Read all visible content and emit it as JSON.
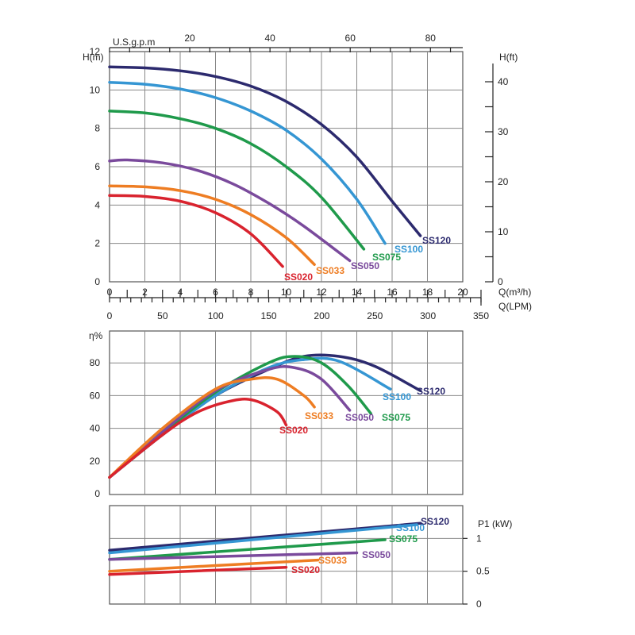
{
  "colors": {
    "SS120": "#2c2a6e",
    "SS100": "#3596d3",
    "SS075": "#1f9a4b",
    "SS050": "#7a4a9c",
    "SS033": "#ee7d23",
    "SS020": "#d9232e"
  },
  "chart_data": [
    {
      "type": "line",
      "name": "head-curve",
      "ylabel_left": "H(m)",
      "ylabel_right": "H(ft)",
      "xlabel_q": "Q(m³/h)",
      "xlabel_lpm": "Q(LPM)",
      "xlabel_usgpm": "U.S.g.p.m",
      "xlim": [
        0,
        20
      ],
      "ylim": [
        0,
        12
      ],
      "y_ticks": [
        "0",
        "2",
        "4",
        "6",
        "8",
        "10",
        "12"
      ],
      "ft_ticks": [
        "0",
        "10",
        "20",
        "30",
        "40"
      ],
      "q_ticks": [
        "0",
        "2",
        "4",
        "6",
        "8",
        "10",
        "12",
        "14",
        "16",
        "18",
        "20"
      ],
      "lpm_ticks": [
        "0",
        "50",
        "100",
        "150",
        "200",
        "250",
        "300",
        "350"
      ],
      "usgpm_ticks": [
        "20",
        "40",
        "60",
        "80"
      ],
      "grid": true,
      "series": [
        {
          "name": "SS120",
          "x": [
            0,
            2,
            4,
            6,
            8,
            10,
            12,
            14,
            16,
            17.6
          ],
          "y": [
            11.2,
            11.15,
            11.0,
            10.7,
            10.2,
            9.4,
            8.2,
            6.5,
            4.2,
            2.4
          ]
        },
        {
          "name": "SS100",
          "x": [
            0,
            2,
            4,
            6,
            8,
            10,
            12,
            14,
            15.6
          ],
          "y": [
            10.4,
            10.3,
            10.05,
            9.6,
            8.9,
            7.9,
            6.4,
            4.3,
            2.0
          ]
        },
        {
          "name": "SS075",
          "x": [
            0,
            2,
            4,
            6,
            8,
            10,
            12,
            14.4
          ],
          "y": [
            8.9,
            8.8,
            8.5,
            8.0,
            7.2,
            6.0,
            4.4,
            1.7
          ]
        },
        {
          "name": "SS050",
          "x": [
            0,
            1,
            3,
            5,
            7,
            9,
            11,
            13.6
          ],
          "y": [
            6.3,
            6.35,
            6.2,
            5.8,
            5.1,
            4.1,
            2.9,
            1.1
          ]
        },
        {
          "name": "SS033",
          "x": [
            0,
            2,
            4,
            6,
            8,
            10,
            11.6
          ],
          "y": [
            5.0,
            4.95,
            4.75,
            4.3,
            3.5,
            2.3,
            0.9
          ]
        },
        {
          "name": "SS020",
          "x": [
            0,
            2,
            4,
            6,
            8,
            9.8
          ],
          "y": [
            4.5,
            4.45,
            4.2,
            3.6,
            2.5,
            0.8
          ]
        }
      ]
    },
    {
      "type": "line",
      "name": "efficiency-curve",
      "ylabel": "η%",
      "xlim": [
        0,
        20
      ],
      "ylim": [
        0,
        100
      ],
      "y_ticks": [
        "0",
        "20",
        "40",
        "60",
        "80"
      ],
      "grid": true,
      "series": [
        {
          "name": "SS120",
          "x": [
            0,
            3,
            6,
            9,
            11,
            13,
            15,
            17.6
          ],
          "y": [
            10,
            37,
            60,
            76,
            84,
            84,
            78,
            63
          ]
        },
        {
          "name": "SS100",
          "x": [
            0,
            3,
            6,
            9,
            11,
            13,
            15.9
          ],
          "y": [
            10,
            36,
            60,
            77,
            82,
            81,
            64
          ]
        },
        {
          "name": "SS075",
          "x": [
            0,
            3,
            6,
            9,
            10.5,
            12,
            13.5,
            14.8
          ],
          "y": [
            10,
            37,
            62,
            80,
            84,
            80,
            66,
            49
          ]
        },
        {
          "name": "SS050",
          "x": [
            0,
            3,
            6,
            9,
            10.5,
            12,
            13.6
          ],
          "y": [
            10,
            38,
            63,
            76,
            77,
            70,
            51
          ]
        },
        {
          "name": "SS033",
          "x": [
            0,
            3,
            6,
            8,
            9.5,
            11,
            11.6
          ],
          "y": [
            10,
            40,
            64,
            70,
            70,
            60,
            53
          ]
        },
        {
          "name": "SS020",
          "x": [
            0,
            3,
            5,
            7,
            8.2,
            9.5,
            10
          ],
          "y": [
            10,
            36,
            50,
            57,
            57,
            50,
            42
          ]
        }
      ]
    },
    {
      "type": "line",
      "name": "power-curve",
      "ylabel": "P1 (kW)",
      "xlim": [
        0,
        20
      ],
      "ylim": [
        0,
        1.5
      ],
      "y_ticks": [
        "0",
        "0.5",
        "1"
      ],
      "grid": true,
      "series": [
        {
          "name": "SS120",
          "x": [
            0,
            17.6
          ],
          "y": [
            0.82,
            1.23
          ]
        },
        {
          "name": "SS100",
          "x": [
            0,
            17.4
          ],
          "y": [
            0.78,
            1.21
          ]
        },
        {
          "name": "SS075",
          "x": [
            0,
            15.6
          ],
          "y": [
            0.68,
            0.98
          ]
        },
        {
          "name": "SS050",
          "x": [
            0,
            14.0
          ],
          "y": [
            0.68,
            0.78
          ]
        },
        {
          "name": "SS033",
          "x": [
            0,
            11.8
          ],
          "y": [
            0.5,
            0.67
          ]
        },
        {
          "name": "SS020",
          "x": [
            0,
            10.0
          ],
          "y": [
            0.45,
            0.56
          ]
        }
      ]
    }
  ]
}
